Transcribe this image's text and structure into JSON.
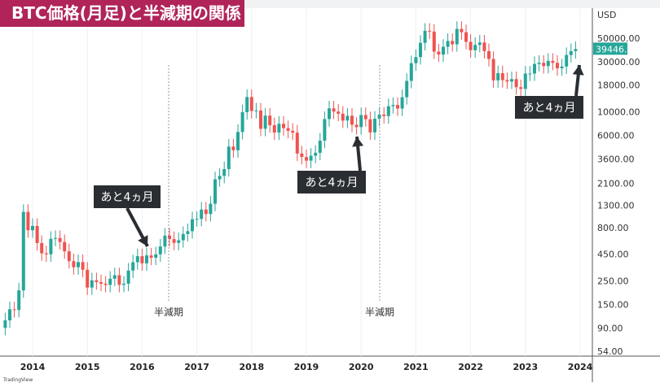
{
  "title": "BTC価格(月足)と半減期の関係",
  "chart_data": {
    "type": "candlestick",
    "scale": "log",
    "currency_label": "USD",
    "start_month": "2013-07",
    "first_open": 90,
    "closes": [
      106,
      135,
      133,
      204,
      1130,
      757,
      832,
      573,
      458,
      448,
      628,
      640,
      586,
      478,
      386,
      338,
      378,
      320,
      217,
      254,
      244,
      236,
      230,
      263,
      284,
      230,
      236,
      314,
      377,
      430,
      368,
      437,
      416,
      448,
      531,
      673,
      624,
      575,
      609,
      698,
      742,
      963,
      970,
      1190,
      1080,
      1350,
      2300,
      2480,
      2875,
      4700,
      4340,
      6470,
      9950,
      13860,
      10220,
      10330,
      6930,
      9240,
      7490,
      6390,
      7730,
      7030,
      6630,
      6370,
      4040,
      3740,
      3460,
      3850,
      4105,
      5350,
      8570,
      10820,
      10080,
      9630,
      8290,
      9200,
      7570,
      7190,
      9350,
      8540,
      6410,
      8620,
      9450,
      9140,
      11350,
      11650,
      10780,
      13800,
      19700,
      28990,
      33110,
      45140,
      58800,
      57750,
      37330,
      35040,
      41460,
      47100,
      43790,
      61300,
      56950,
      46210,
      38470,
      43190,
      45540,
      37710,
      31790,
      19940,
      23300,
      20050,
      19420,
      20490,
      17170,
      16540,
      23130,
      23150,
      28480,
      29250,
      27220,
      30480,
      29230,
      25940,
      26970,
      34660,
      37720,
      39446
    ],
    "y_ticks": [
      "50000.00",
      "30000.00",
      "18000.00",
      "10000.00",
      "6000.00",
      "3600.00",
      "2100.00",
      "1300.00",
      "800.00",
      "450.00",
      "250.00",
      "150.00",
      "90.00",
      "54.00"
    ],
    "y_tick_values": [
      50000,
      30000,
      18000,
      10000,
      6000,
      3600,
      2100,
      1300,
      800,
      450,
      250,
      150,
      90,
      54
    ],
    "x_ticks": [
      "2014",
      "2015",
      "2016",
      "2017",
      "2018",
      "2019",
      "2020",
      "2021",
      "2022",
      "2023",
      "2024"
    ],
    "last_price": "39446.30",
    "colors": {
      "up": "#26a69a",
      "down": "#ef5350",
      "annotation_bg": "#2a2e33",
      "title_bg": "#b0245a"
    },
    "halvings": [
      {
        "date": "2016-07",
        "label": "半減期"
      },
      {
        "date": "2020-05",
        "label": "半減期"
      }
    ],
    "annotations": [
      {
        "text": "あと4ヵ月"
      },
      {
        "text": "あと4ヵ月"
      },
      {
        "text": "あと4ヵ月"
      }
    ]
  },
  "watermark": "TradingView"
}
